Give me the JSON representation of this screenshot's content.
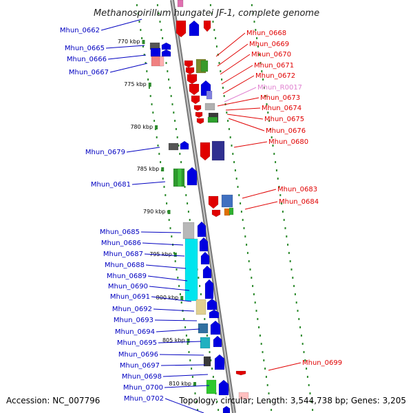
{
  "title": "Methanospirillum hungatei JF-1, complete genome",
  "footer": {
    "accession": "Accession: NC_007796",
    "topology": "Topology: circular; Length: 3,544,738 bp; Genes: 3,205"
  },
  "colors": {
    "left_labels": "#0000c0",
    "right_labels": "#e00000",
    "rna_label": "#e080d0",
    "ticks": "#2e8b2e",
    "backbone": "#888888"
  },
  "scale_labels": [
    "770 kbp",
    "775 kbp",
    "780 kbp",
    "785 kbp",
    "790 kbp",
    "795 kbp",
    "800 kbp",
    "805 kbp",
    "810 kbp"
  ],
  "left_genes": [
    "Mhun_0662",
    "Mhun_0665",
    "Mhun_0666",
    "Mhun_0667",
    "Mhun_0679",
    "Mhun_0681",
    "Mhun_0685",
    "Mhun_0686",
    "Mhun_0687",
    "Mhun_0688",
    "Mhun_0689",
    "Mhun_0690",
    "Mhun_0691",
    "Mhun_0692",
    "Mhun_0693",
    "Mhun_0694",
    "Mhun_0695",
    "Mhun_0696",
    "Mhun_0697",
    "Mhun_0698",
    "Mhun_0700",
    "Mhun_0702"
  ],
  "right_genes": [
    "Mhun_0668",
    "Mhun_0669",
    "Mhun_0670",
    "Mhun_0671",
    "Mhun_0672",
    "Mhun_R0017",
    "Mhun_0673",
    "Mhun_0674",
    "Mhun_0675",
    "Mhun_0676",
    "Mhun_0680",
    "Mhun_0683",
    "Mhun_0684",
    "Mhun_0699"
  ]
}
